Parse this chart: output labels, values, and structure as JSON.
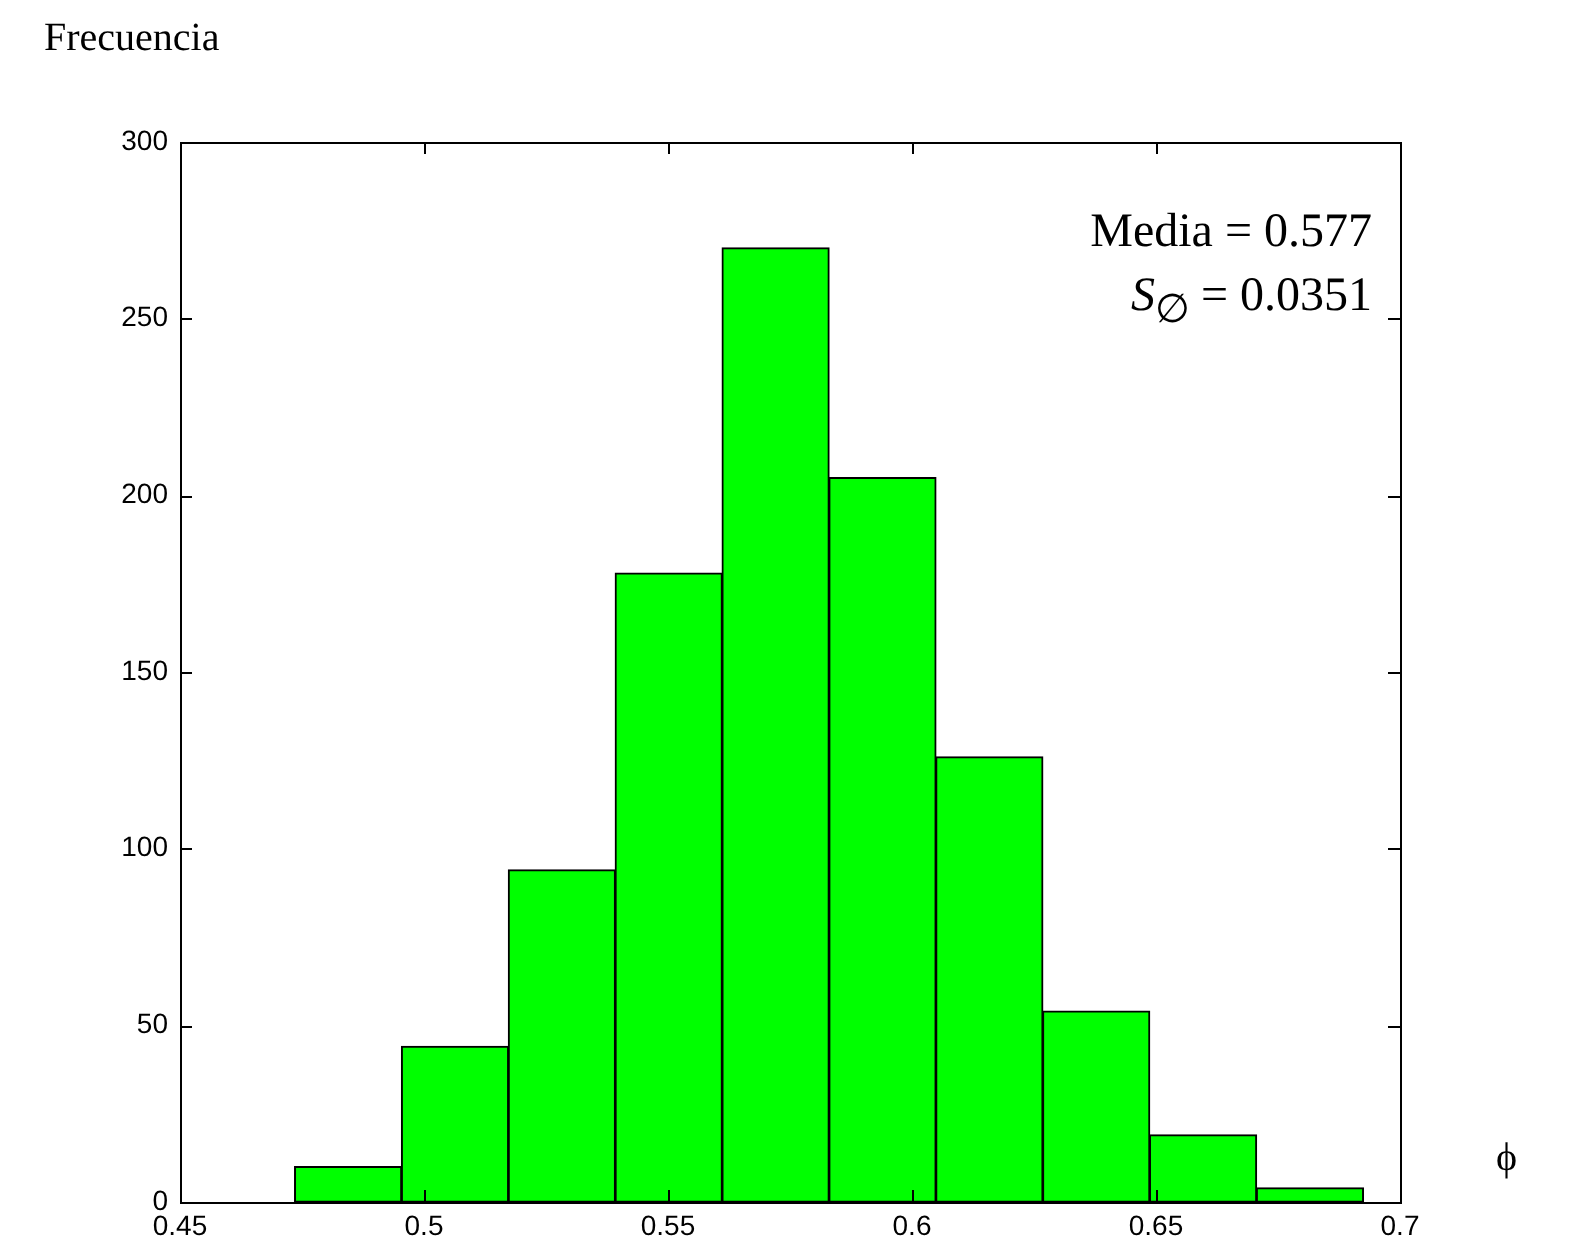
{
  "chart_data": {
    "type": "histogram",
    "ylabel": "Frecuencia",
    "xlabel": "ϕ",
    "bins": [
      0.4735,
      0.4954,
      0.5173,
      0.5392,
      0.5611,
      0.583,
      0.6049,
      0.6268,
      0.6487,
      0.6706,
      0.6925
    ],
    "values": [
      10,
      44,
      94,
      178,
      270,
      205,
      126,
      54,
      19,
      4
    ],
    "color": "#00ff00",
    "xlim": [
      0.45,
      0.7
    ],
    "xticks": [
      0.45,
      0.5,
      0.55,
      0.6,
      0.65,
      0.7
    ],
    "ylim": [
      0,
      300
    ],
    "yticks": [
      0,
      50,
      100,
      150,
      200,
      250,
      300
    ],
    "grid": false,
    "legend": false,
    "annotations": [
      "Media = 0.577",
      "S$_{∅}$ = 0.0351"
    ]
  }
}
